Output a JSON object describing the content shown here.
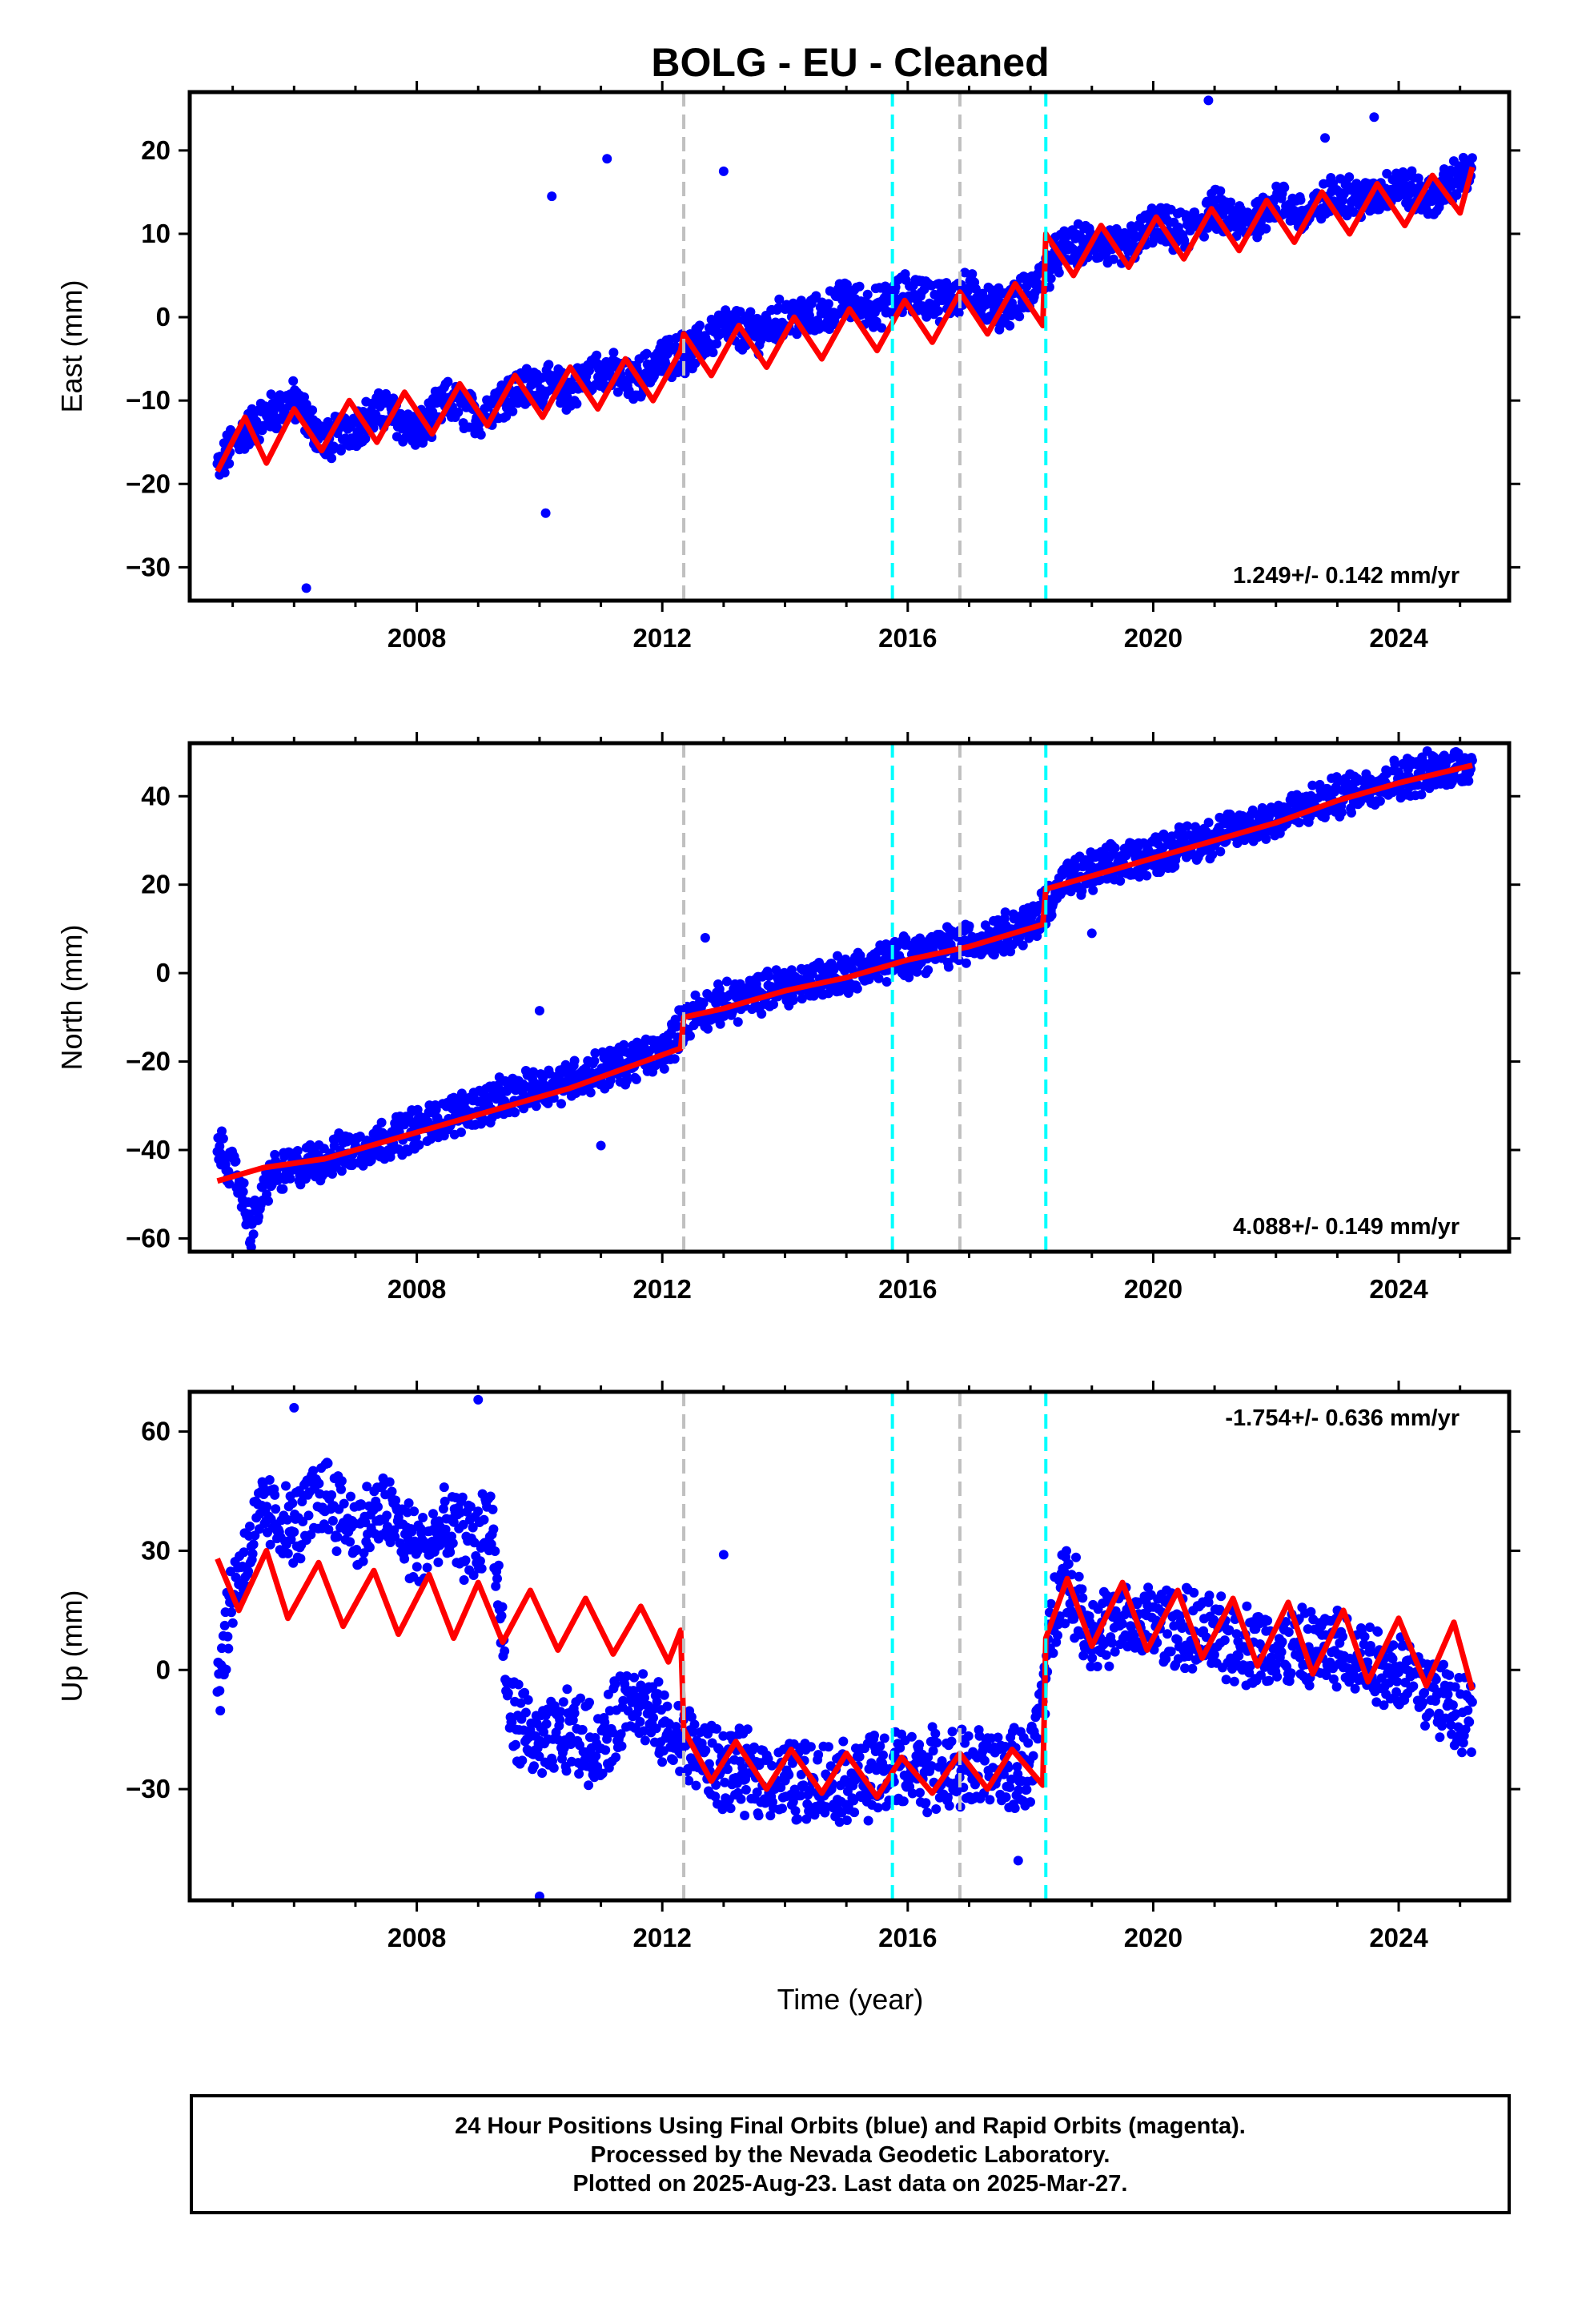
{
  "title": "BOLG  - EU - Cleaned",
  "xlabel": "Time (year)",
  "x_tick_labels": [
    "2008",
    "2012",
    "2016",
    "2020",
    "2024"
  ],
  "colors": {
    "data": "#0000ff",
    "model": "#ff0000",
    "frame": "#000000",
    "offset_gray": "#c0c0c0",
    "offset_cyan": "#00ffff"
  },
  "footer": {
    "line1": "24 Hour Positions Using Final Orbits (blue) and Rapid Orbits (magenta).",
    "line2": "Processed by the Nevada Geodetic Laboratory.",
    "line3": "Plotted on 2025-Aug-23. Last data on 2025-Mar-27."
  },
  "chart_data": [
    {
      "type": "scatter",
      "component": "East",
      "ylabel": "East (mm)",
      "rate_label": "1.249+/- 0.142 mm/yr",
      "rate_position": "bottom-right",
      "xlim": [
        2004.3,
        2025.8
      ],
      "ylim": [
        -34,
        27
      ],
      "yticks": [
        -30,
        -20,
        -10,
        0,
        10,
        20
      ],
      "x_range_data": [
        2004.7,
        2025.2
      ],
      "offset_lines": [
        {
          "x": 2012.35,
          "color": "gray"
        },
        {
          "x": 2015.75,
          "color": "cyan"
        },
        {
          "x": 2016.85,
          "color": "gray"
        },
        {
          "x": 2018.25,
          "color": "cyan"
        }
      ],
      "series": [
        {
          "role": "daily positions",
          "points": [
            [
              2004.8,
              -18
            ],
            [
              2005.0,
              -15
            ],
            [
              2005.5,
              -12
            ],
            [
              2006.0,
              -10
            ],
            [
              2006.5,
              -15
            ],
            [
              2007.0,
              -13
            ],
            [
              2007.5,
              -11
            ],
            [
              2008.0,
              -14
            ],
            [
              2008.5,
              -10
            ],
            [
              2009.0,
              -12
            ],
            [
              2009.5,
              -9
            ],
            [
              2010.0,
              -8
            ],
            [
              2010.5,
              -9
            ],
            [
              2011.0,
              -6
            ],
            [
              2011.5,
              -8
            ],
            [
              2012.0,
              -5
            ],
            [
              2012.5,
              -4
            ],
            [
              2013.0,
              -1
            ],
            [
              2013.5,
              -2
            ],
            [
              2014.0,
              0
            ],
            [
              2014.5,
              0
            ],
            [
              2015.0,
              2
            ],
            [
              2015.5,
              1
            ],
            [
              2016.0,
              3
            ],
            [
              2016.5,
              2
            ],
            [
              2017.0,
              3
            ],
            [
              2017.5,
              1
            ],
            [
              2018.0,
              3
            ],
            [
              2018.5,
              8
            ],
            [
              2019.0,
              9
            ],
            [
              2019.5,
              8
            ],
            [
              2020.0,
              11
            ],
            [
              2020.5,
              10
            ],
            [
              2021.0,
              13
            ],
            [
              2021.5,
              11
            ],
            [
              2022.0,
              14
            ],
            [
              2022.5,
              12
            ],
            [
              2023.0,
              15
            ],
            [
              2023.5,
              14
            ],
            [
              2024.0,
              16
            ],
            [
              2024.5,
              14
            ],
            [
              2025.0,
              17
            ]
          ]
        },
        {
          "role": "model",
          "points": [
            [
              2004.75,
              -18.5
            ],
            [
              2005.2,
              -12
            ],
            [
              2005.55,
              -17.5
            ],
            [
              2006.0,
              -11
            ],
            [
              2006.45,
              -16
            ],
            [
              2006.9,
              -10
            ],
            [
              2007.35,
              -15
            ],
            [
              2007.8,
              -9
            ],
            [
              2008.25,
              -14
            ],
            [
              2008.7,
              -8
            ],
            [
              2009.15,
              -13
            ],
            [
              2009.6,
              -7
            ],
            [
              2010.05,
              -12
            ],
            [
              2010.5,
              -6
            ],
            [
              2010.95,
              -11
            ],
            [
              2011.4,
              -5
            ],
            [
              2011.85,
              -10
            ],
            [
              2012.3,
              -4
            ],
            [
              2012.35,
              -2
            ],
            [
              2012.8,
              -7
            ],
            [
              2013.25,
              -1
            ],
            [
              2013.7,
              -6
            ],
            [
              2014.15,
              0
            ],
            [
              2014.6,
              -5
            ],
            [
              2015.05,
              1
            ],
            [
              2015.5,
              -4
            ],
            [
              2015.95,
              2
            ],
            [
              2016.4,
              -3
            ],
            [
              2016.85,
              3
            ],
            [
              2017.3,
              -2
            ],
            [
              2017.75,
              4
            ],
            [
              2018.2,
              -1
            ],
            [
              2018.25,
              10
            ],
            [
              2018.7,
              5
            ],
            [
              2019.15,
              11
            ],
            [
              2019.6,
              6
            ],
            [
              2020.05,
              12
            ],
            [
              2020.5,
              7
            ],
            [
              2020.95,
              13
            ],
            [
              2021.4,
              8
            ],
            [
              2021.85,
              14
            ],
            [
              2022.3,
              9
            ],
            [
              2022.75,
              15
            ],
            [
              2023.2,
              10
            ],
            [
              2023.65,
              16
            ],
            [
              2024.1,
              11
            ],
            [
              2024.55,
              17
            ],
            [
              2025.0,
              12.5
            ],
            [
              2025.2,
              18
            ]
          ]
        }
      ],
      "outliers": [
        [
          2006.2,
          -32.5
        ],
        [
          2010.1,
          -23.5
        ],
        [
          2010.2,
          14.5
        ],
        [
          2011.1,
          19
        ],
        [
          2013.0,
          17.5
        ],
        [
          2020.9,
          26
        ],
        [
          2023.6,
          24
        ],
        [
          2022.8,
          21.5
        ]
      ]
    },
    {
      "type": "scatter",
      "component": "North",
      "ylabel": "North (mm)",
      "rate_label": "4.088+/- 0.149 mm/yr",
      "rate_position": "bottom-right",
      "xlim": [
        2004.3,
        2025.8
      ],
      "ylim": [
        -63,
        52
      ],
      "yticks": [
        -60,
        -40,
        -20,
        0,
        20,
        40
      ],
      "offset_lines": [
        {
          "x": 2012.35,
          "color": "gray"
        },
        {
          "x": 2015.75,
          "color": "cyan"
        },
        {
          "x": 2016.85,
          "color": "gray"
        },
        {
          "x": 2018.25,
          "color": "cyan"
        }
      ],
      "series": [
        {
          "role": "daily positions",
          "points": [
            [
              2004.8,
              -40
            ],
            [
              2005.1,
              -47
            ],
            [
              2005.3,
              -58
            ],
            [
              2005.6,
              -46
            ],
            [
              2006.0,
              -44
            ],
            [
              2007.0,
              -40
            ],
            [
              2008.0,
              -35
            ],
            [
              2009.0,
              -30
            ],
            [
              2010.0,
              -26
            ],
            [
              2011.0,
              -22
            ],
            [
              2012.0,
              -18
            ],
            [
              2012.5,
              -9
            ],
            [
              2013.0,
              -7
            ],
            [
              2014.0,
              -3
            ],
            [
              2015.0,
              0
            ],
            [
              2016.0,
              4
            ],
            [
              2017.0,
              7
            ],
            [
              2018.0,
              11
            ],
            [
              2018.5,
              20
            ],
            [
              2019.0,
              23
            ],
            [
              2020.0,
              27
            ],
            [
              2021.0,
              31
            ],
            [
              2022.0,
              35
            ],
            [
              2023.0,
              40
            ],
            [
              2024.0,
              44
            ],
            [
              2025.0,
              47
            ]
          ]
        },
        {
          "role": "model",
          "points": [
            [
              2004.75,
              -47
            ],
            [
              2005.5,
              -44
            ],
            [
              2006.5,
              -42
            ],
            [
              2007.5,
              -38
            ],
            [
              2008.5,
              -34
            ],
            [
              2009.5,
              -30
            ],
            [
              2010.5,
              -26
            ],
            [
              2011.5,
              -21
            ],
            [
              2012.3,
              -17
            ],
            [
              2012.35,
              -10
            ],
            [
              2013.0,
              -8
            ],
            [
              2014.0,
              -4
            ],
            [
              2015.0,
              -1
            ],
            [
              2016.0,
              3
            ],
            [
              2017.0,
              6
            ],
            [
              2018.2,
              11
            ],
            [
              2018.25,
              19
            ],
            [
              2019.0,
              22
            ],
            [
              2020.0,
              26
            ],
            [
              2021.0,
              30
            ],
            [
              2022.0,
              34
            ],
            [
              2023.0,
              39
            ],
            [
              2024.0,
              43
            ],
            [
              2025.2,
              47
            ]
          ]
        }
      ],
      "outliers": [
        [
          2007.0,
          -39
        ],
        [
          2010.0,
          -8.5
        ],
        [
          2011.0,
          -39
        ],
        [
          2012.7,
          8
        ],
        [
          2019.0,
          9
        ]
      ]
    },
    {
      "type": "scatter",
      "component": "Up",
      "ylabel": "Up (mm)",
      "rate_label": "-1.754+/- 0.636 mm/yr",
      "rate_position": "top-right",
      "xlim": [
        2004.3,
        2025.8
      ],
      "ylim": [
        -58,
        70
      ],
      "yticks": [
        -30,
        0,
        30,
        60
      ],
      "offset_lines": [
        {
          "x": 2012.35,
          "color": "gray"
        },
        {
          "x": 2015.75,
          "color": "cyan"
        },
        {
          "x": 2016.85,
          "color": "gray"
        },
        {
          "x": 2018.25,
          "color": "cyan"
        }
      ],
      "series": [
        {
          "role": "daily positions",
          "points": [
            [
              2004.8,
              0
            ],
            [
              2005.0,
              20
            ],
            [
              2005.5,
              40
            ],
            [
              2006.0,
              35
            ],
            [
              2006.5,
              45
            ],
            [
              2007.0,
              35
            ],
            [
              2007.5,
              40
            ],
            [
              2008.0,
              30
            ],
            [
              2008.5,
              35
            ],
            [
              2009.0,
              32
            ],
            [
              2009.2,
              40
            ],
            [
              2009.5,
              -10
            ],
            [
              2010.0,
              -20
            ],
            [
              2010.5,
              -15
            ],
            [
              2011.0,
              -20
            ],
            [
              2011.5,
              -5
            ],
            [
              2012.0,
              -15
            ],
            [
              2012.5,
              -20
            ],
            [
              2013.0,
              -25
            ],
            [
              2014.0,
              -28
            ],
            [
              2015.0,
              -28
            ],
            [
              2016.0,
              -25
            ],
            [
              2017.0,
              -25
            ],
            [
              2018.0,
              -25
            ],
            [
              2018.5,
              25
            ],
            [
              2019.0,
              10
            ],
            [
              2020.0,
              12
            ],
            [
              2021.0,
              8
            ],
            [
              2022.0,
              5
            ],
            [
              2023.0,
              5
            ],
            [
              2024.0,
              0
            ],
            [
              2025.0,
              -10
            ]
          ]
        },
        {
          "role": "model",
          "points": [
            [
              2004.75,
              28
            ],
            [
              2005.1,
              15
            ],
            [
              2005.55,
              30
            ],
            [
              2005.9,
              13
            ],
            [
              2006.4,
              27
            ],
            [
              2006.8,
              11
            ],
            [
              2007.3,
              25
            ],
            [
              2007.7,
              9
            ],
            [
              2008.2,
              24
            ],
            [
              2008.6,
              8
            ],
            [
              2009.0,
              22
            ],
            [
              2009.4,
              7
            ],
            [
              2009.85,
              20
            ],
            [
              2010.3,
              5
            ],
            [
              2010.75,
              18
            ],
            [
              2011.2,
              4
            ],
            [
              2011.65,
              16
            ],
            [
              2012.1,
              2
            ],
            [
              2012.3,
              10
            ],
            [
              2012.35,
              -15
            ],
            [
              2012.8,
              -28
            ],
            [
              2013.2,
              -18
            ],
            [
              2013.7,
              -30
            ],
            [
              2014.1,
              -20
            ],
            [
              2014.6,
              -31
            ],
            [
              2015.0,
              -21
            ],
            [
              2015.5,
              -32
            ],
            [
              2015.9,
              -22
            ],
            [
              2016.4,
              -31
            ],
            [
              2016.85,
              -21
            ],
            [
              2017.3,
              -30
            ],
            [
              2017.7,
              -20
            ],
            [
              2018.2,
              -29
            ],
            [
              2018.25,
              8
            ],
            [
              2018.6,
              23
            ],
            [
              2019.0,
              6
            ],
            [
              2019.5,
              22
            ],
            [
              2019.9,
              5
            ],
            [
              2020.4,
              20
            ],
            [
              2020.8,
              3
            ],
            [
              2021.3,
              18
            ],
            [
              2021.7,
              1
            ],
            [
              2022.2,
              17
            ],
            [
              2022.6,
              -1
            ],
            [
              2023.1,
              15
            ],
            [
              2023.5,
              -3
            ],
            [
              2024.0,
              13
            ],
            [
              2024.45,
              -4
            ],
            [
              2024.9,
              12
            ],
            [
              2025.2,
              -5
            ]
          ]
        }
      ],
      "outliers": [
        [
          2006.0,
          66
        ],
        [
          2009.0,
          68
        ],
        [
          2010.0,
          -57
        ],
        [
          2013.0,
          29
        ],
        [
          2017.8,
          -48
        ]
      ]
    }
  ]
}
